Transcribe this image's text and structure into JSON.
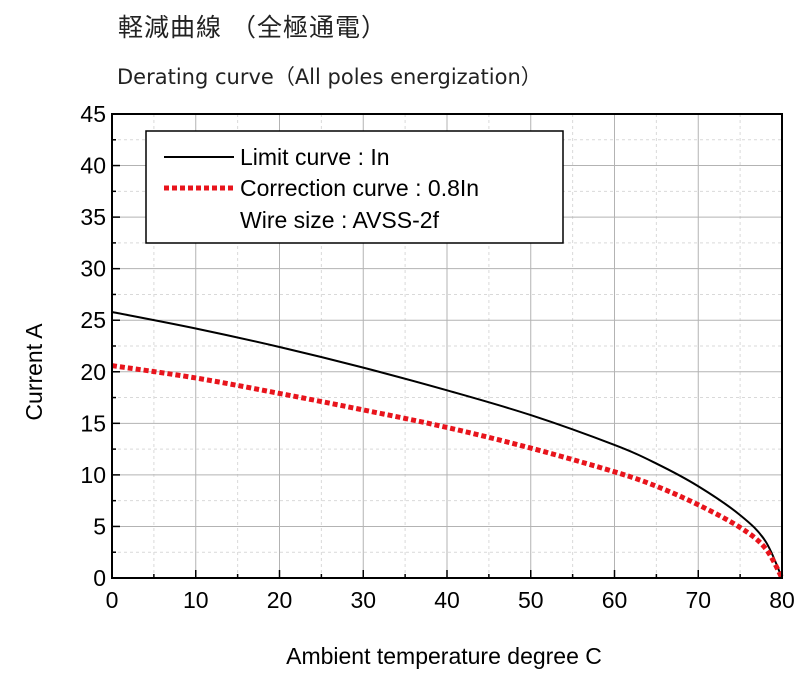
{
  "title_jp": "軽減曲線 （全極通電）",
  "title_en": "Derating curve（All poles energization）",
  "chart_data": {
    "type": "line",
    "xlabel": "Ambient temperature  degree C",
    "ylabel": "Current  A",
    "xlim": [
      0,
      80
    ],
    "ylim": [
      0,
      45
    ],
    "x_ticks": [
      "0",
      "10",
      "20",
      "30",
      "40",
      "50",
      "60",
      "70",
      "80"
    ],
    "y_ticks": [
      "0",
      "5",
      "10",
      "15",
      "20",
      "25",
      "30",
      "35",
      "40",
      "45"
    ],
    "grid": true,
    "legend_position": "top-left",
    "legend_note": "Wire size : AVSS-2f",
    "series": [
      {
        "name": "Limit curve : In",
        "color": "#000000",
        "style": "solid",
        "x": [
          0,
          10,
          20,
          30,
          40,
          50,
          60,
          65,
          70,
          75,
          78,
          80
        ],
        "y": [
          25.8,
          24.2,
          22.4,
          20.4,
          18.2,
          15.8,
          12.9,
          11.1,
          8.9,
          6.1,
          3.6,
          0
        ]
      },
      {
        "name": "Correction curve : 0.8In",
        "color": "#e8141c",
        "style": "dotted",
        "x": [
          0,
          10,
          20,
          30,
          40,
          50,
          60,
          65,
          70,
          75,
          78,
          80
        ],
        "y": [
          20.6,
          19.4,
          17.9,
          16.3,
          14.6,
          12.6,
          10.3,
          8.9,
          7.1,
          4.9,
          2.9,
          0
        ]
      }
    ]
  }
}
